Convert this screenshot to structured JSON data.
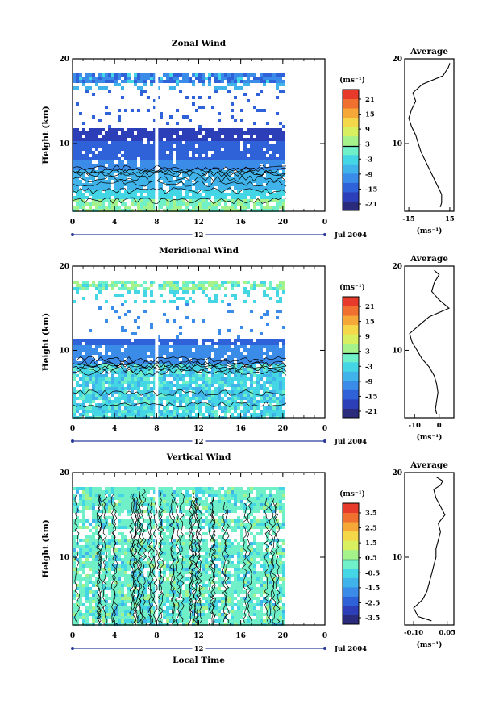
{
  "figure": {
    "x_axis_label": "Local Time",
    "date_label": "Jul 2004",
    "day_marker": "12"
  },
  "colors": {
    "scale": [
      "#2b2b7e",
      "#2c3fb8",
      "#2f62d8",
      "#3b8be8",
      "#3fb3ea",
      "#45d6e6",
      "#6ff0c8",
      "#a5f28a",
      "#d8f060",
      "#f5d84a",
      "#f5a838",
      "#f07030",
      "#e83a2a"
    ],
    "contour": "#000000",
    "frame": "#000000"
  },
  "chart_data": [
    {
      "id": "zonal",
      "type": "heatmap",
      "title": "Zonal Wind",
      "ylabel": "Height (km)",
      "x_ticks": [
        "0",
        "4",
        "8",
        "12",
        "16",
        "20",
        "0"
      ],
      "xlim": [
        0,
        24
      ],
      "y_ticks": [
        "10",
        "20"
      ],
      "ylim": [
        2,
        20
      ],
      "colorbar": {
        "unit": "(ms⁻¹)",
        "tick_labels": [
          "21",
          "15",
          "9",
          "3",
          "-3",
          "-9",
          "-15",
          "-21"
        ],
        "range": [
          -24,
          24
        ]
      },
      "average": {
        "title": "Average",
        "xlabel": "(ms⁻¹)",
        "x_ticks": [
          "-15",
          "15"
        ],
        "xlim": [
          -18,
          18
        ],
        "ylim": [
          2,
          20
        ],
        "y_ticks": [
          "10",
          "20"
        ],
        "profile": {
          "height": [
            2.5,
            3,
            4,
            5,
            6,
            7,
            8,
            9,
            10,
            11,
            12,
            13,
            14,
            15,
            16,
            17,
            18,
            18.5,
            19,
            19.5
          ],
          "value": [
            8,
            9,
            9,
            6,
            3,
            0,
            -3,
            -6,
            -8,
            -10,
            -13,
            -15,
            -13,
            -10,
            -12,
            -5,
            10,
            12,
            14,
            15
          ]
        }
      }
    },
    {
      "id": "meridional",
      "type": "heatmap",
      "title": "Meridional Wind",
      "ylabel": "Height (km)",
      "x_ticks": [
        "0",
        "4",
        "8",
        "12",
        "16",
        "20",
        "0"
      ],
      "xlim": [
        0,
        24
      ],
      "y_ticks": [
        "10",
        "20"
      ],
      "ylim": [
        2,
        20
      ],
      "colorbar": {
        "unit": "(ms⁻¹)",
        "tick_labels": [
          "21",
          "15",
          "9",
          "3",
          "-3",
          "-9",
          "-15",
          "-21"
        ],
        "range": [
          -24,
          24
        ]
      },
      "average": {
        "title": "Average",
        "xlabel": "(ms⁻¹)",
        "x_ticks": [
          "-10",
          "0"
        ],
        "xlim": [
          -14,
          6
        ],
        "ylim": [
          2,
          20
        ],
        "y_ticks": [
          "10",
          "20"
        ],
        "profile": {
          "height": [
            2.5,
            3,
            4,
            5,
            6,
            7,
            8,
            9,
            10,
            11,
            12,
            13,
            14,
            15,
            16,
            17,
            18,
            18.5,
            19,
            19.5
          ],
          "value": [
            -1,
            -1.5,
            -1,
            -0.5,
            -1,
            -2,
            -4,
            -7,
            -9,
            -11,
            -12,
            -8,
            -4,
            4,
            0,
            -3,
            -2,
            -1,
            0,
            -2
          ]
        }
      }
    },
    {
      "id": "vertical",
      "type": "heatmap",
      "title": "Vertical Wind",
      "ylabel": "Height (km)",
      "x_ticks": [
        "0",
        "4",
        "8",
        "12",
        "16",
        "20",
        "0"
      ],
      "xlim": [
        0,
        24
      ],
      "y_ticks": [
        "10",
        "20"
      ],
      "ylim": [
        2,
        20
      ],
      "colorbar": {
        "unit": "(ms⁻¹)",
        "tick_labels": [
          "3.5",
          "2.5",
          "1.5",
          "0.5",
          "-0.5",
          "-1.5",
          "-2.5",
          "-3.5"
        ],
        "range": [
          -4,
          4
        ]
      },
      "average": {
        "title": "Average",
        "xlabel": "(ms⁻¹)",
        "x_ticks": [
          "-0.10",
          "0.05"
        ],
        "xlim": [
          -0.14,
          0.08
        ],
        "ylim": [
          2,
          20
        ],
        "y_ticks": [
          "10",
          "20"
        ],
        "profile": {
          "height": [
            2.5,
            3,
            4,
            5,
            6,
            7,
            8,
            9,
            10,
            11,
            12,
            13,
            14,
            15,
            16,
            17,
            18,
            18.5,
            19,
            19.5
          ],
          "value": [
            -0.02,
            -0.08,
            -0.1,
            -0.06,
            -0.04,
            -0.03,
            -0.02,
            -0.01,
            0,
            0,
            0.01,
            0.02,
            0.01,
            0.04,
            0.02,
            0,
            -0.01,
            0.02,
            0.03,
            0.0
          ]
        }
      }
    }
  ]
}
